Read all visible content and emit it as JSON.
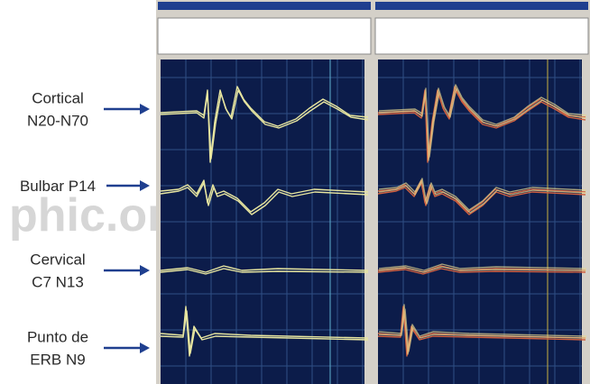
{
  "labels": [
    {
      "lines": [
        "Cortical",
        "N20-N70"
      ]
    },
    {
      "lines": [
        "Bulbar P14"
      ]
    },
    {
      "lines": [
        "Cervical",
        "C7 N13"
      ]
    },
    {
      "lines": [
        "Punto de",
        "ERB N9"
      ]
    }
  ],
  "watermark": "phic.or"
}
